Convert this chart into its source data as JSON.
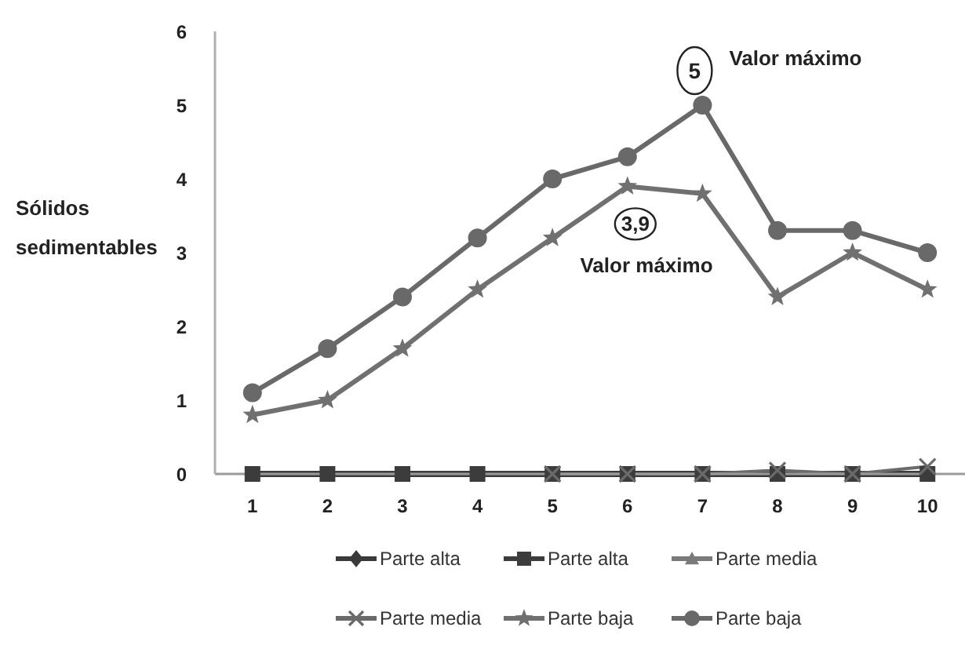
{
  "chart_data": {
    "type": "line",
    "ylabel": "Sólidos sedimentables",
    "categories": [
      "1",
      "2",
      "3",
      "4",
      "5",
      "6",
      "7",
      "8",
      "9",
      "10"
    ],
    "ylim": [
      0,
      6
    ],
    "yticks": [
      0,
      1,
      2,
      3,
      4,
      5,
      6
    ],
    "grid": false,
    "legend": "bottom",
    "series": [
      {
        "name": "Parte alta",
        "color": "#3a3a3a",
        "marker": "diamond",
        "values": [
          null,
          null,
          null,
          null,
          null,
          null,
          null,
          null,
          null,
          null
        ]
      },
      {
        "name": "Parte alta",
        "color": "#3c3c3c",
        "marker": "square",
        "values": [
          0,
          0,
          0,
          0,
          0,
          0,
          0,
          0,
          0,
          0
        ]
      },
      {
        "name": "Parte media",
        "color": "#7a7a7a",
        "marker": "triangle",
        "values": [
          null,
          null,
          null,
          null,
          null,
          null,
          null,
          null,
          null,
          null
        ]
      },
      {
        "name": "Parte media",
        "color": "#6a6a6a",
        "marker": "cross",
        "values": [
          null,
          null,
          null,
          null,
          0,
          0,
          0,
          0.05,
          0,
          0.1
        ]
      },
      {
        "name": "Parte baja",
        "color": "#707070",
        "marker": "star",
        "values": [
          0.8,
          1.0,
          1.7,
          2.5,
          3.2,
          3.9,
          3.8,
          2.4,
          3.0,
          2.5
        ]
      },
      {
        "name": "Parte baja",
        "color": "#696969",
        "marker": "circle",
        "values": [
          1.1,
          1.7,
          2.4,
          3.2,
          4.0,
          4.3,
          5.0,
          3.3,
          3.3,
          3.0
        ]
      }
    ],
    "annotations": [
      {
        "text": "5",
        "x": "7",
        "y": 5
      },
      {
        "text": "Valor máximo",
        "x": "7",
        "y": 5
      },
      {
        "text": "3,9",
        "x": "6",
        "y": 3.9
      },
      "Valor máximo"
    ]
  }
}
